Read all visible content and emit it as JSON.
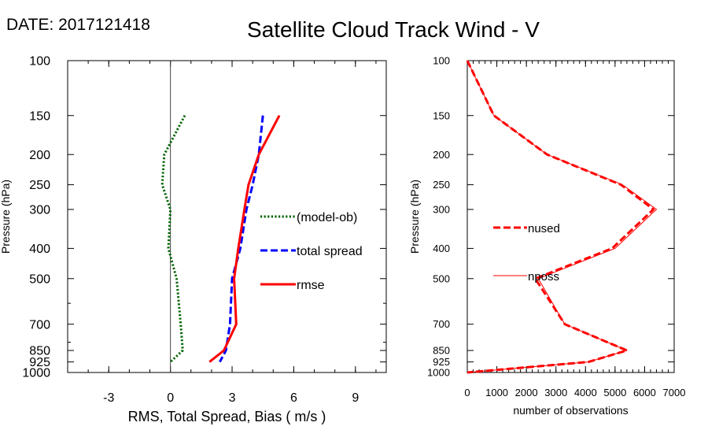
{
  "header": {
    "date_label": "DATE: 2017121418",
    "title": "Satellite Cloud Track Wind - V"
  },
  "chart_data": [
    {
      "type": "line",
      "xlabel": "RMS, Total Spread, Bias ( m/s )",
      "ylabel": "Pressure (hPa)",
      "xlim": [
        -5,
        10.5
      ],
      "ylim": [
        1000,
        100
      ],
      "yscale": "log",
      "xticks": [
        -3,
        0,
        3,
        6,
        9
      ],
      "yticks": [
        100,
        150,
        200,
        250,
        300,
        400,
        500,
        700,
        850,
        925,
        1000
      ],
      "zero_line": true,
      "legend_position": "right-middle",
      "series": [
        {
          "name": "(model-ob)",
          "color": "#006400",
          "style": "dotted",
          "points": [
            [
              0.7,
              150
            ],
            [
              -0.3,
              200
            ],
            [
              -0.4,
              250
            ],
            [
              0.0,
              300
            ],
            [
              -0.1,
              400
            ],
            [
              0.3,
              500
            ],
            [
              0.5,
              700
            ],
            [
              0.6,
              850
            ],
            [
              0.0,
              925
            ]
          ]
        },
        {
          "name": "total spread",
          "color": "#0000ff",
          "style": "dashed",
          "points": [
            [
              4.5,
              150
            ],
            [
              4.3,
              200
            ],
            [
              4.0,
              250
            ],
            [
              3.7,
              300
            ],
            [
              3.4,
              400
            ],
            [
              3.0,
              500
            ],
            [
              2.9,
              700
            ],
            [
              2.7,
              850
            ],
            [
              2.4,
              925
            ]
          ]
        },
        {
          "name": "rmse",
          "color": "#ff0000",
          "style": "solid",
          "points": [
            [
              5.3,
              150
            ],
            [
              4.3,
              200
            ],
            [
              3.8,
              250
            ],
            [
              3.6,
              300
            ],
            [
              3.3,
              400
            ],
            [
              3.1,
              500
            ],
            [
              3.2,
              700
            ],
            [
              2.6,
              850
            ],
            [
              1.9,
              925
            ]
          ]
        }
      ]
    },
    {
      "type": "line",
      "xlabel": "number of observations",
      "ylabel": "Pressure (hPa)",
      "xlim": [
        0,
        7000
      ],
      "ylim": [
        1000,
        100
      ],
      "yscale": "log",
      "xticks": [
        0,
        1000,
        2000,
        3000,
        4000,
        5000,
        6000,
        7000
      ],
      "yticks": [
        100,
        150,
        200,
        250,
        300,
        400,
        500,
        700,
        850,
        925,
        1000
      ],
      "legend_position": "left-middle",
      "series": [
        {
          "name": "nused",
          "color": "#ff0000",
          "style": "dashed",
          "points": [
            [
              0,
              100
            ],
            [
              900,
              150
            ],
            [
              2700,
              200
            ],
            [
              5200,
              250
            ],
            [
              6300,
              300
            ],
            [
              4900,
              400
            ],
            [
              2300,
              500
            ],
            [
              3300,
              700
            ],
            [
              5400,
              850
            ],
            [
              4100,
              925
            ],
            [
              0,
              1000
            ]
          ]
        },
        {
          "name": "nposs",
          "color": "#ff0000",
          "style": "thin",
          "points": [
            [
              0,
              100
            ],
            [
              900,
              150
            ],
            [
              2700,
              200
            ],
            [
              5250,
              250
            ],
            [
              6400,
              300
            ],
            [
              5000,
              400
            ],
            [
              2400,
              500
            ],
            [
              3300,
              700
            ],
            [
              5400,
              850
            ],
            [
              4100,
              925
            ],
            [
              0,
              1000
            ]
          ]
        }
      ]
    }
  ]
}
